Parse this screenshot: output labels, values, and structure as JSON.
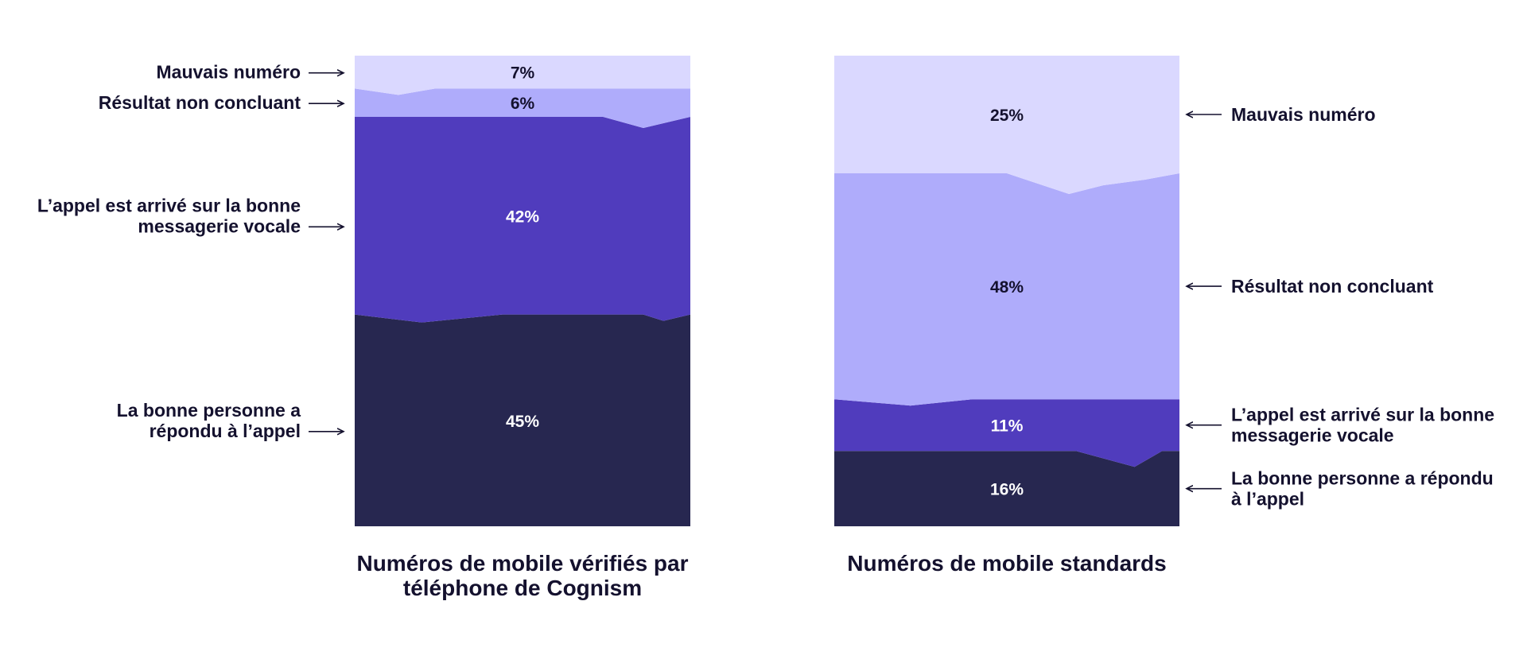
{
  "colors": {
    "mauvais_numero": "#dad8ff",
    "resultat_non_concluant": "#afacfb",
    "messagerie_vocale": "#503cbd",
    "bonne_personne": "#272750",
    "text_dark": "#14112e",
    "text_light": "#ffffff",
    "arrow": "#14112e"
  },
  "chart_data": [
    {
      "type": "bar",
      "stacked": true,
      "caption": "Numéros de mobile vérifiés par téléphone de Cognism",
      "caption_lines": [
        "Numéros de mobile vérifiés par",
        "téléphone de Cognism"
      ],
      "label_side": "left",
      "segments": [
        {
          "name": "La bonne personne a répondu à l’appel",
          "lines": [
            "La bonne personne a",
            "répondu à l’appel"
          ],
          "value": 45,
          "label": "45%",
          "color_key": "bonne_personne"
        },
        {
          "name": "L’appel est arrivé sur la bonne messagerie vocale",
          "lines": [
            "L’appel est arrivé sur la bonne",
            "messagerie vocale"
          ],
          "value": 42,
          "label": "42%",
          "color_key": "messagerie_vocale"
        },
        {
          "name": "Résultat non concluant",
          "lines": [
            "Résultat non concluant"
          ],
          "value": 6,
          "label": "6%",
          "color_key": "resultat_non_concluant"
        },
        {
          "name": "Mauvais numéro",
          "lines": [
            "Mauvais numéro"
          ],
          "value": 7,
          "label": "7%",
          "color_key": "mauvais_numero"
        }
      ]
    },
    {
      "type": "bar",
      "stacked": true,
      "caption": "Numéros de mobile standards",
      "caption_lines": [
        "Numéros de mobile standards"
      ],
      "label_side": "right",
      "segments": [
        {
          "name": "La bonne personne a répondu à l’appel",
          "lines": [
            "La bonne personne a répondu",
            "à l’appel"
          ],
          "value": 16,
          "label": "16%",
          "color_key": "bonne_personne"
        },
        {
          "name": "L’appel est arrivé sur la bonne messagerie vocale",
          "lines": [
            "L’appel est arrivé sur la bonne",
            "messagerie vocale"
          ],
          "value": 11,
          "label": "11%",
          "color_key": "messagerie_vocale"
        },
        {
          "name": "Résultat non concluant",
          "lines": [
            "Résultat non concluant"
          ],
          "value": 48,
          "label": "48%",
          "color_key": "resultat_non_concluant"
        },
        {
          "name": "Mauvais numéro",
          "lines": [
            "Mauvais numéro"
          ],
          "value": 25,
          "label": "25%",
          "color_key": "mauvais_numero"
        }
      ]
    }
  ]
}
